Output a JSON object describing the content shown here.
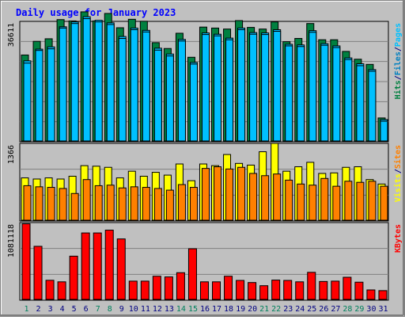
{
  "colors": {
    "background": "#c0c0c0",
    "plot_border": "#000000",
    "grid": "#808080",
    "hits_fill": "#008040",
    "files_fill": "#00c0ff",
    "pages_fill": "#00c0ff",
    "visits_fill": "#ffff00",
    "sites_fill": "#ff8000",
    "kbytes_fill": "#ff0000",
    "title_color": "#0000ff",
    "weekend_day_color": "#00805c",
    "weekday_color": "#000080"
  },
  "chart_data": {
    "type": "bar",
    "title": "Daily usage for January 2023",
    "categories": [
      "1",
      "2",
      "3",
      "4",
      "5",
      "6",
      "7",
      "8",
      "9",
      "10",
      "11",
      "12",
      "13",
      "14",
      "15",
      "16",
      "17",
      "18",
      "19",
      "20",
      "21",
      "22",
      "23",
      "24",
      "25",
      "26",
      "27",
      "28",
      "29",
      "30",
      "31"
    ],
    "weekend_days": [
      "1",
      "7",
      "8",
      "14",
      "15",
      "21",
      "22",
      "28",
      "29"
    ],
    "panels": [
      {
        "scale_max_label": "36611",
        "ymax": 36611,
        "legend": [
          "Hits",
          "/",
          "Files",
          "/",
          "Pages"
        ],
        "legend_colors": [
          "#008040",
          "#000080",
          "#0080c0",
          "#000080",
          "#00c0ff"
        ],
        "series": [
          {
            "name": "Hits",
            "values": [
              26500,
              30700,
              31500,
              37400,
              37000,
              39800,
              37000,
              39300,
              34900,
              37500,
              36900,
              30300,
              28500,
              33200,
              25800,
              35100,
              34800,
              34500,
              37100,
              35000,
              34500,
              36700,
              30600,
              31600,
              36200,
              31200,
              31200,
              27600,
              25200,
              23600,
              7100
            ]
          },
          {
            "name": "Files",
            "values": [
              24700,
              28300,
              29000,
              35200,
              36700,
              38300,
              37200,
              36400,
              32200,
              34800,
              34100,
              28600,
              26800,
              31300,
              24200,
              33300,
              32900,
              31700,
              34800,
              33400,
              33300,
              34300,
              29800,
              29600,
              34000,
              30000,
              29300,
              25600,
              23800,
              22000,
              6600
            ]
          },
          {
            "name": "Pages",
            "values": [
              24000,
              27900,
              28400,
              34800,
              36200,
              37700,
              36700,
              35900,
              31600,
              34300,
              33600,
              28000,
              26200,
              30800,
              23700,
              32800,
              32400,
              31200,
              34300,
              32900,
              32800,
              33800,
              29300,
              29100,
              33500,
              29500,
              28800,
              25100,
              23200,
              21500,
              6100
            ]
          }
        ]
      },
      {
        "scale_max_label": "1366",
        "ymax": 1366,
        "legend": [
          "Visits",
          "/",
          "Sites"
        ],
        "legend_colors": [
          "#ffff00",
          "#000080",
          "#ff8000"
        ],
        "series": [
          {
            "name": "Visits",
            "values": [
              760,
              740,
              760,
              740,
              790,
              980,
              970,
              950,
              760,
              880,
              790,
              860,
              810,
              1010,
              710,
              1010,
              980,
              1180,
              1020,
              990,
              1230,
              1380,
              880,
              960,
              1040,
              840,
              850,
              950,
              960,
              730,
              650
            ]
          },
          {
            "name": "Sites",
            "values": [
              620,
              600,
              590,
              570,
              480,
              730,
              620,
              630,
              580,
              600,
              590,
              570,
              540,
              640,
              590,
              930,
              960,
              920,
              950,
              840,
              800,
              830,
              720,
              650,
              630,
              750,
              610,
              700,
              680,
              700,
              610
            ]
          }
        ]
      },
      {
        "scale_max_label": "1081118",
        "ymax": 1081118,
        "legend": [
          "KBytes"
        ],
        "legend_colors": [
          "#ff0000"
        ],
        "series": [
          {
            "name": "KBytes",
            "values": [
              1075000,
              755000,
              272000,
              250000,
              615000,
              945000,
              945000,
              985000,
              860000,
              260000,
              260000,
              330000,
              320000,
              380000,
              720000,
              250000,
              250000,
              330000,
              270000,
              240000,
              195000,
              275000,
              270000,
              250000,
              385000,
              255000,
              260000,
              315000,
              245000,
              135000,
              125000
            ]
          }
        ]
      }
    ]
  }
}
